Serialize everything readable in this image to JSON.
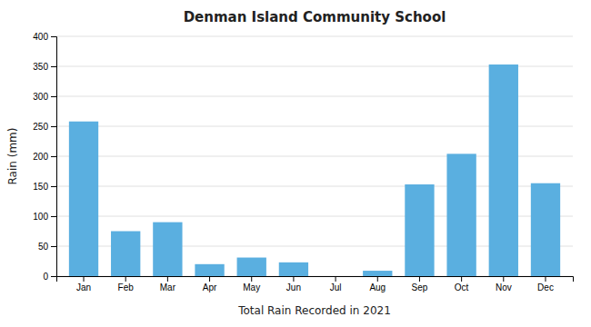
{
  "chart_data": {
    "type": "bar",
    "title": "Denman Island Community School",
    "xlabel": "Total Rain Recorded in 2021",
    "ylabel": "Rain (mm)",
    "categories": [
      "Jan",
      "Feb",
      "Mar",
      "Apr",
      "May",
      "Jun",
      "Jul",
      "Aug",
      "Sep",
      "Oct",
      "Nov",
      "Dec"
    ],
    "values": [
      258,
      75,
      90,
      20,
      31,
      23,
      0,
      9,
      153,
      204,
      353,
      155
    ],
    "color": "#5AAFE0",
    "ylim": [
      0,
      400
    ],
    "yticks": [
      0,
      50,
      100,
      150,
      200,
      250,
      300,
      350,
      400
    ],
    "grid": true
  }
}
